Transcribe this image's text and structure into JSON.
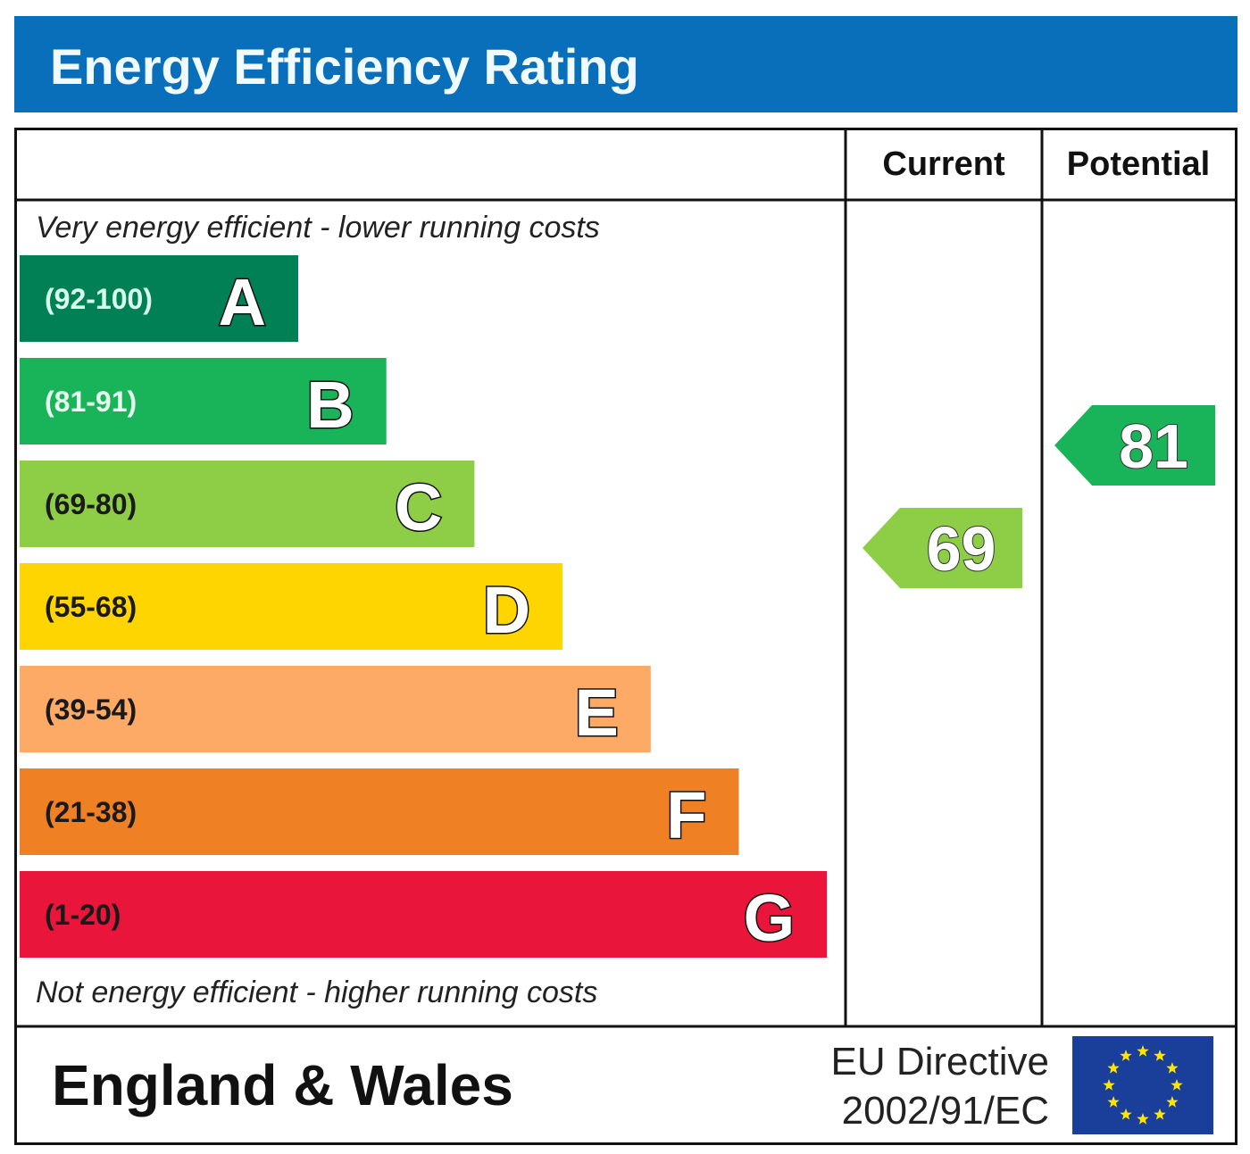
{
  "chart_data": {
    "type": "bar",
    "title": "Energy Efficiency Rating",
    "columns": [
      "Current",
      "Potential"
    ],
    "top_note": "Very energy efficient - lower running costs",
    "bottom_note": "Not energy efficient - higher running costs",
    "bands": [
      {
        "letter": "A",
        "range": "(92-100)",
        "color": "#008054",
        "text_color": "#d8ffee"
      },
      {
        "letter": "B",
        "range": "(81-91)",
        "color": "#19b459",
        "text_color": "#e8fff0"
      },
      {
        "letter": "C",
        "range": "(69-80)",
        "color": "#8dce46",
        "text_color": "#1a1a1a"
      },
      {
        "letter": "D",
        "range": "(55-68)",
        "color": "#ffd500",
        "text_color": "#1a1a1a"
      },
      {
        "letter": "E",
        "range": "(39-54)",
        "color": "#fcaa65",
        "text_color": "#1a1a1a"
      },
      {
        "letter": "F",
        "range": "(21-38)",
        "color": "#ef8023",
        "text_color": "#1a1a1a"
      },
      {
        "letter": "G",
        "range": "(1-20)",
        "color": "#e9153b",
        "text_color": "#1a1a1a"
      }
    ],
    "current": {
      "value": 69,
      "label": "69",
      "color": "#8dce46"
    },
    "potential": {
      "value": 81,
      "label": "81",
      "color": "#19b459"
    }
  },
  "footer": {
    "region": "England & Wales",
    "directive_line1": "EU Directive",
    "directive_line2": "2002/91/EC",
    "flag_icon": "eu-flag-icon"
  },
  "colors": {
    "title_bar": "#0a6fba",
    "flag_blue": "#1a3f9a",
    "flag_star": "#ffe500"
  }
}
